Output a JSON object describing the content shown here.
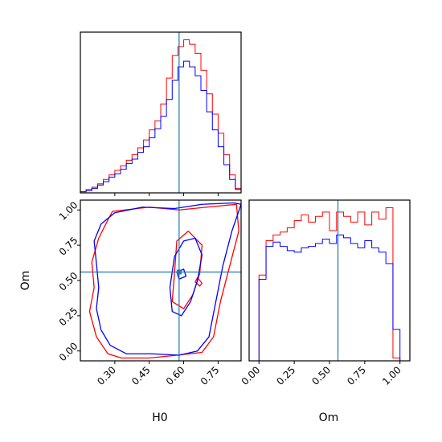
{
  "chart_data": {
    "type": "corner",
    "parameters": [
      "H0",
      "Om"
    ],
    "truths": {
      "H0": 0.58,
      "Om": 0.56
    },
    "truth_color": "#1f77b4",
    "series": [
      {
        "color": "#ff0000"
      },
      {
        "color": "#0000ff"
      }
    ],
    "hist_H0": {
      "xlim": [
        0.15,
        0.85
      ],
      "edges": [
        0.15,
        0.175,
        0.2,
        0.225,
        0.25,
        0.275,
        0.3,
        0.325,
        0.35,
        0.375,
        0.4,
        0.425,
        0.45,
        0.475,
        0.5,
        0.525,
        0.55,
        0.575,
        0.6,
        0.625,
        0.65,
        0.675,
        0.7,
        0.725,
        0.75,
        0.775,
        0.8,
        0.825,
        0.85
      ],
      "red": [
        1,
        3,
        5,
        8,
        12,
        16,
        20,
        24,
        29,
        34,
        40,
        47,
        56,
        64,
        79,
        102,
        122,
        130,
        136,
        132,
        124,
        109,
        88,
        70,
        53,
        34,
        16,
        4
      ],
      "blue": [
        1,
        2,
        4,
        7,
        10,
        14,
        17,
        21,
        26,
        30,
        36,
        41,
        49,
        57,
        68,
        83,
        100,
        112,
        117,
        112,
        104,
        91,
        72,
        56,
        41,
        25,
        12,
        3
      ]
    },
    "hist_Om": {
      "xlim": [
        -0.07,
        1.07
      ],
      "edges": [
        -0.05,
        0.0,
        0.05,
        0.1,
        0.15,
        0.2,
        0.25,
        0.3,
        0.35,
        0.4,
        0.45,
        0.5,
        0.55,
        0.6,
        0.65,
        0.7,
        0.75,
        0.8,
        0.85,
        0.9,
        0.95,
        1.0,
        1.05
      ],
      "red": [
        0,
        60,
        84,
        88,
        90,
        93,
        98,
        102,
        97,
        101,
        104,
        91,
        104,
        101,
        97,
        104,
        95,
        104,
        99,
        107,
        2,
        0
      ],
      "blue": [
        0,
        57,
        80,
        83,
        80,
        77,
        76,
        79,
        80,
        82,
        85,
        82,
        88,
        86,
        82,
        79,
        84,
        79,
        76,
        68,
        22,
        0
      ]
    },
    "scatter": {
      "xlabel": "H0",
      "ylabel": "Om",
      "xlim": [
        0.15,
        0.85
      ],
      "ylim": [
        -0.07,
        1.07
      ],
      "x_ticks": [
        "0.30",
        "0.45",
        "0.60",
        "0.75"
      ],
      "y_ticks": [
        "0.00",
        "0.25",
        "0.50",
        "0.75",
        "1.00"
      ],
      "om_ticks": [
        "0.00",
        "0.25",
        "0.50",
        "0.75",
        "1.00"
      ]
    },
    "contours": [
      {
        "series": 0,
        "points": [
          [
            0.29,
            0.99
          ],
          [
            0.45,
            1.02
          ],
          [
            0.58,
            1.0
          ],
          [
            0.7,
            1.02
          ],
          [
            0.83,
            1.04
          ],
          [
            0.84,
            0.85
          ],
          [
            0.8,
            0.6
          ],
          [
            0.76,
            0.35
          ],
          [
            0.73,
            0.1
          ],
          [
            0.68,
            -0.01
          ],
          [
            0.57,
            -0.03
          ],
          [
            0.45,
            -0.05
          ],
          [
            0.33,
            -0.05
          ],
          [
            0.27,
            -0.02
          ],
          [
            0.22,
            0.1
          ],
          [
            0.19,
            0.28
          ],
          [
            0.21,
            0.45
          ],
          [
            0.2,
            0.63
          ],
          [
            0.23,
            0.8
          ],
          [
            0.27,
            0.93
          ]
        ]
      },
      {
        "series": 0,
        "points": [
          [
            0.57,
            0.78
          ],
          [
            0.62,
            0.85
          ],
          [
            0.68,
            0.75
          ],
          [
            0.67,
            0.55
          ],
          [
            0.64,
            0.4
          ],
          [
            0.6,
            0.3
          ],
          [
            0.55,
            0.35
          ],
          [
            0.56,
            0.55
          ]
        ]
      },
      {
        "series": 0,
        "points": [
          [
            0.66,
            0.52
          ],
          [
            0.68,
            0.48
          ],
          [
            0.67,
            0.46
          ],
          [
            0.65,
            0.49
          ]
        ]
      },
      {
        "series": 1,
        "points": [
          [
            0.24,
            0.9
          ],
          [
            0.3,
            0.98
          ],
          [
            0.42,
            1.02
          ],
          [
            0.56,
            1.01
          ],
          [
            0.68,
            1.04
          ],
          [
            0.82,
            1.05
          ],
          [
            0.85,
            1.04
          ],
          [
            0.81,
            0.85
          ],
          [
            0.77,
            0.6
          ],
          [
            0.74,
            0.35
          ],
          [
            0.71,
            0.1
          ],
          [
            0.66,
            0.0
          ],
          [
            0.58,
            -0.03
          ],
          [
            0.46,
            -0.02
          ],
          [
            0.35,
            -0.02
          ],
          [
            0.28,
            0.04
          ],
          [
            0.24,
            0.15
          ],
          [
            0.22,
            0.3
          ],
          [
            0.23,
            0.45
          ],
          [
            0.22,
            0.62
          ],
          [
            0.21,
            0.78
          ]
        ]
      },
      {
        "series": 1,
        "points": [
          [
            0.56,
            0.67
          ],
          [
            0.6,
            0.78
          ],
          [
            0.65,
            0.8
          ],
          [
            0.68,
            0.68
          ],
          [
            0.66,
            0.5
          ],
          [
            0.63,
            0.35
          ],
          [
            0.59,
            0.25
          ],
          [
            0.55,
            0.28
          ],
          [
            0.54,
            0.45
          ]
        ]
      },
      {
        "series": 1,
        "points": [
          [
            0.57,
            0.56
          ],
          [
            0.6,
            0.58
          ],
          [
            0.61,
            0.53
          ],
          [
            0.58,
            0.51
          ]
        ]
      }
    ]
  }
}
